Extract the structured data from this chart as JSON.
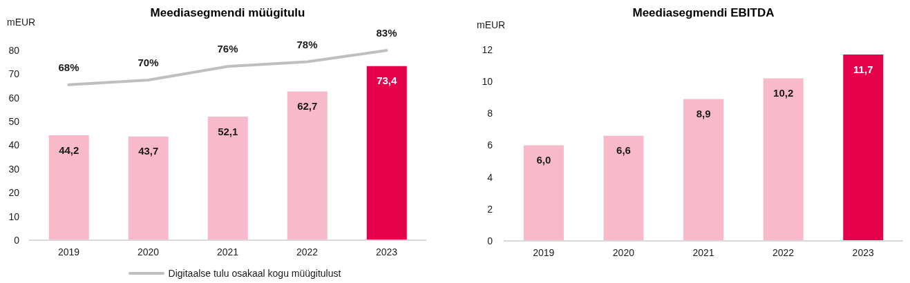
{
  "chart_data": [
    {
      "type": "bar",
      "title": "Meediasegmendi müügitulu",
      "ylabel": "mEUR",
      "categories": [
        "2019",
        "2020",
        "2021",
        "2022",
        "2023"
      ],
      "series": [
        {
          "colors": [
            "#f8b9cb",
            "#f8b9cb",
            "#f8b9cb",
            "#f8b9cb",
            "#e4004b"
          ],
          "values": [
            44.2,
            43.7,
            52.1,
            62.7,
            73.4
          ],
          "value_labels": [
            "44,2",
            "43,7",
            "52,1",
            "62,7",
            "73,4"
          ]
        },
        {
          "type": "line",
          "name": "Digitaalse tulu osakaal kogu müügitulust",
          "color": "#bfbfbf",
          "axis": "y2",
          "values": [
            68,
            70,
            76,
            78,
            83
          ],
          "value_labels": [
            "68%",
            "70%",
            "76%",
            "78%",
            "83%"
          ]
        }
      ],
      "ylim": [
        0,
        80
      ],
      "yticks": [
        0,
        10,
        20,
        30,
        40,
        50,
        60,
        70,
        80
      ],
      "legend": "bottom"
    },
    {
      "type": "bar",
      "title": "Meediasegmendi EBITDA",
      "ylabel": "mEUR",
      "categories": [
        "2019",
        "2020",
        "2021",
        "2022",
        "2023"
      ],
      "values": [
        6.0,
        6.6,
        8.9,
        10.2,
        11.7
      ],
      "colors": [
        "#f8b9cb",
        "#f8b9cb",
        "#f8b9cb",
        "#f8b9cb",
        "#e4004b"
      ],
      "value_labels": [
        "6,0",
        "6,6",
        "8,9",
        "10,2",
        "11,7"
      ],
      "ylim": [
        0,
        12
      ],
      "yticks": [
        0,
        2,
        4,
        6,
        8,
        10,
        12
      ]
    }
  ]
}
